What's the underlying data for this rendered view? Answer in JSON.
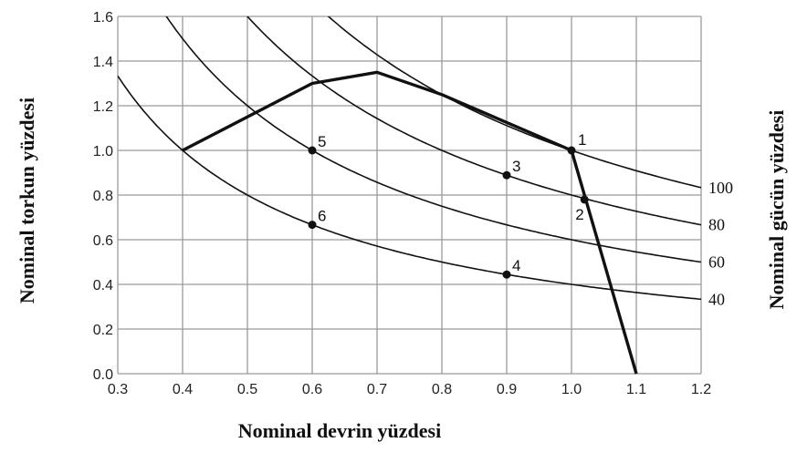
{
  "chart_data": {
    "type": "line",
    "xlabel": "Nominal devrin  yüzdesi",
    "ylabel": "Nominal torkun  yüzdesi",
    "ylabel_right": "Nominal gücün yüzdesi",
    "xlim": [
      0.3,
      1.2
    ],
    "ylim": [
      0.0,
      1.6
    ],
    "grid": true,
    "x_ticks": [
      "0.3",
      "0.4",
      "0.5",
      "0.6",
      "0.7",
      "0.8",
      "0.9",
      "1.0",
      "1.1",
      "1.2"
    ],
    "y_ticks": [
      "0.0",
      "0.2",
      "0.4",
      "0.6",
      "0.8",
      "1.0",
      "1.2",
      "1.4",
      "1.6"
    ],
    "series": [
      {
        "name": "100",
        "style": "thin",
        "power": 1.0
      },
      {
        "name": "80",
        "style": "thin",
        "power": 0.8
      },
      {
        "name": "60",
        "style": "thin",
        "power": 0.6
      },
      {
        "name": "40",
        "style": "thin",
        "power": 0.4
      },
      {
        "name": "",
        "style": "thick",
        "x": [
          0.4,
          0.6,
          0.7,
          0.8,
          1.0,
          1.1
        ],
        "y": [
          1.0,
          1.3,
          1.35,
          1.25,
          1.0,
          0.0
        ]
      }
    ],
    "points": [
      {
        "label": "1",
        "x": 1.0,
        "y": 1.0
      },
      {
        "label": "2",
        "x": 1.02,
        "y": 0.78
      },
      {
        "label": "3",
        "x": 0.9,
        "y": 0.889
      },
      {
        "label": "4",
        "x": 0.9,
        "y": 0.444
      },
      {
        "label": "5",
        "x": 0.6,
        "y": 1.0
      },
      {
        "label": "6",
        "x": 0.6,
        "y": 0.667
      }
    ],
    "right_labels": [
      "100",
      "80",
      "60",
      "40"
    ]
  },
  "colors": {
    "line": "#111111",
    "grid": "#9a9a9a",
    "background": "#ffffff"
  }
}
